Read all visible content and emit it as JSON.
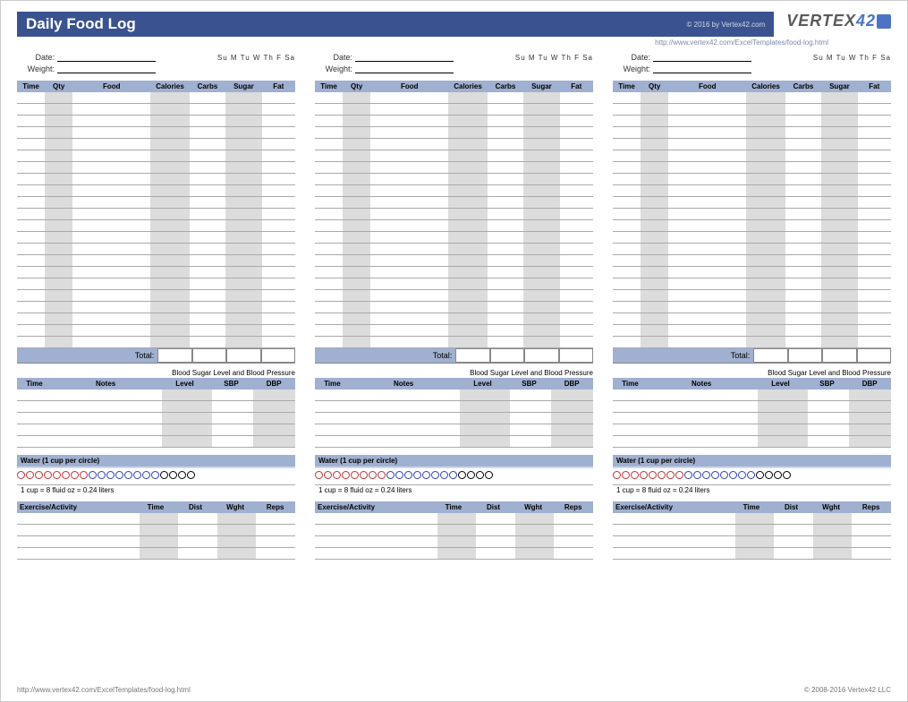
{
  "header": {
    "title": "Daily Food Log",
    "copyright": "© 2016 by Vertex42.com",
    "url": "http://www.vertex42.com/ExcelTemplates/food-log.html",
    "logo": "VERTEX",
    "logo_suffix": "42"
  },
  "labels": {
    "date": "Date:",
    "weight": "Weight:",
    "days": "Su M Tu W Th F Sa",
    "total": "Total:"
  },
  "food_cols": [
    "Time",
    "Qty",
    "Food",
    "Calories",
    "Carbs",
    "Sugar",
    "Fat"
  ],
  "food_rows": 22,
  "bp": {
    "title": "Blood Sugar Level and Blood Pressure",
    "cols": [
      "Time",
      "Notes",
      "Level",
      "SBP",
      "DBP"
    ],
    "rows": 5
  },
  "water": {
    "title": "Water (1 cup per circle)",
    "note": "1 cup = 8 fluid oz = 0.24 liters",
    "red": 8,
    "blue": 8,
    "black": 4
  },
  "ex": {
    "cols": [
      "Exercise/Activity",
      "Time",
      "Dist",
      "Wght",
      "Reps"
    ],
    "rows": 4
  },
  "footer": {
    "left": "http://www.vertex42.com/ExcelTemplates/food-log.html",
    "right": "© 2008-2016 Vertex42 LLC"
  }
}
